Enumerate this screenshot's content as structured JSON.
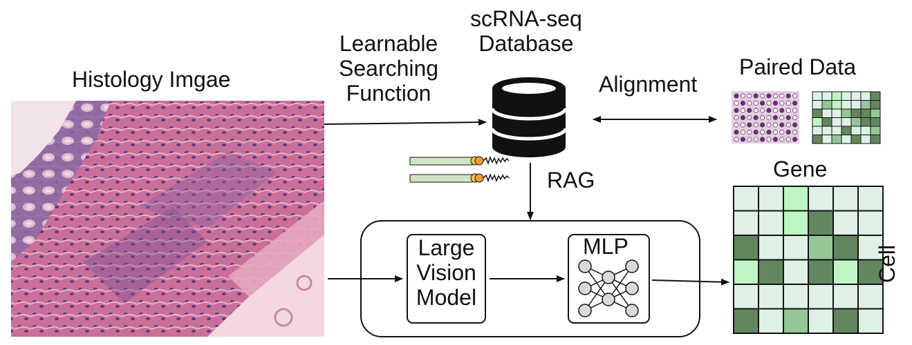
{
  "labels": {
    "histology_title": "Histology Imgae",
    "search_fn_line1": "Learnable",
    "search_fn_line2": "Searching",
    "search_fn_line3": "Function",
    "db_line1": "scRNA-seq",
    "db_line2": "Database",
    "alignment": "Alignment",
    "paired_data": "Paired Data",
    "rag": "RAG",
    "lvm_line1": "Large",
    "lvm_line2": "Vision",
    "lvm_line3": "Model",
    "mlp": "MLP",
    "gene": "Gene",
    "cell": "Cell"
  },
  "icons": [
    "histology-image",
    "database-icon",
    "feature-bar-icon",
    "spot-grid-icon",
    "expression-grid-icon",
    "neural-network-icon"
  ],
  "colors": {
    "tissue_pink": "#d98ba6",
    "tissue_purple": "#7b4a8d",
    "gene_light": "#dff0e6",
    "gene_bright": "#bff5c4",
    "gene_mid": "#94c796",
    "gene_dark": "#62875f",
    "stroke": "#111111"
  },
  "gene_matrix": [
    [
      0,
      0,
      1,
      0,
      0,
      0
    ],
    [
      0,
      0,
      1,
      3,
      0,
      0
    ],
    [
      3,
      0,
      0,
      2,
      3,
      0
    ],
    [
      1,
      3,
      0,
      3,
      1,
      3
    ],
    [
      0,
      0,
      0,
      0,
      0,
      0
    ],
    [
      3,
      0,
      2,
      0,
      3,
      0
    ]
  ]
}
